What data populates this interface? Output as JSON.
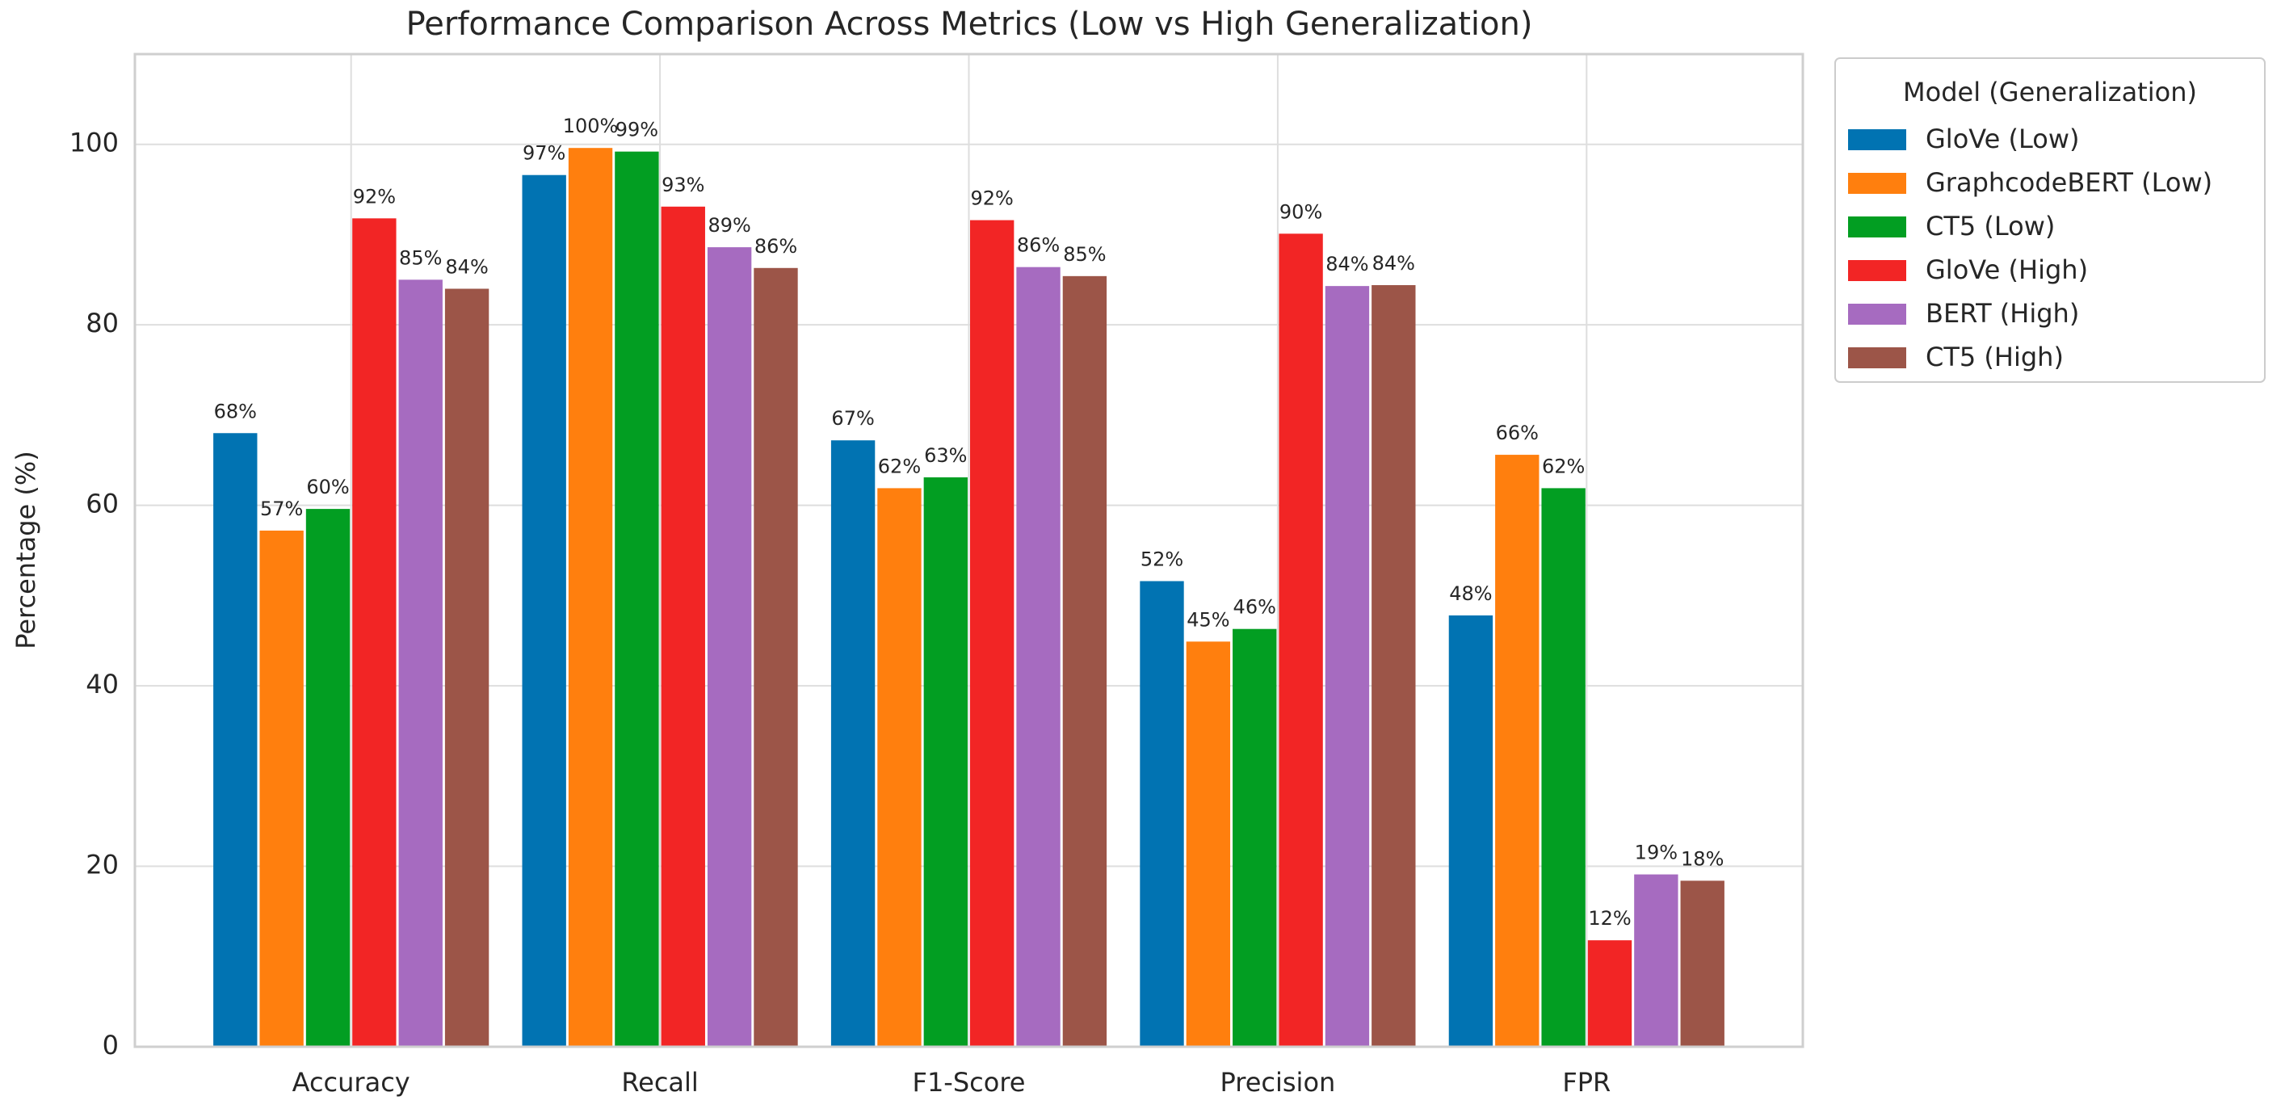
{
  "chart_data": {
    "type": "bar",
    "title": "Performance Comparison Across Metrics (Low vs High Generalization)",
    "y_label": "Percentage (%)",
    "legend_title": "Model (Generalization)",
    "legend_position": "outside-right",
    "grid": true,
    "categories": [
      "Accuracy",
      "Recall",
      "F1-Score",
      "Precision",
      "FPR"
    ],
    "ylim": [
      0,
      110
    ],
    "yticks": [
      0,
      20,
      40,
      60,
      80,
      100
    ],
    "series": [
      {
        "name": "GloVe (Low)",
        "color": "#0173b2",
        "values": [
          68.0,
          96.6,
          67.2,
          51.6,
          47.8
        ],
        "value_labels": [
          "68%",
          "97%",
          "67%",
          "52%",
          "48%"
        ]
      },
      {
        "name": "GraphcodeBERT (Low)",
        "color": "#ff7f0e",
        "values": [
          57.2,
          99.6,
          61.9,
          44.9,
          65.6
        ],
        "value_labels": [
          "57%",
          "100%",
          "62%",
          "45%",
          "66%"
        ]
      },
      {
        "name": "CT5 (Low)",
        "color": "#029e22",
        "values": [
          59.6,
          99.2,
          63.1,
          46.3,
          61.9
        ],
        "value_labels": [
          "60%",
          "99%",
          "63%",
          "46%",
          "62%"
        ]
      },
      {
        "name": "GloVe (High)",
        "color": "#f22525",
        "values": [
          91.8,
          93.1,
          91.6,
          90.1,
          11.8
        ],
        "value_labels": [
          "92%",
          "93%",
          "92%",
          "90%",
          "12%"
        ]
      },
      {
        "name": "BERT (High)",
        "color": "#a66bc0",
        "values": [
          85.0,
          88.6,
          86.4,
          84.3,
          19.1
        ],
        "value_labels": [
          "85%",
          "89%",
          "86%",
          "84%",
          "19%"
        ]
      },
      {
        "name": "CT5 (High)",
        "color": "#9c5548",
        "values": [
          84.0,
          86.3,
          85.4,
          84.4,
          18.4
        ],
        "value_labels": [
          "84%",
          "86%",
          "85%",
          "84%",
          "18%"
        ]
      }
    ]
  }
}
